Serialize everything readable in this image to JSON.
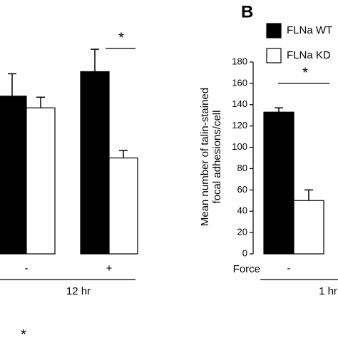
{
  "chart_data": [
    {
      "type": "bar",
      "categories": [
        "-",
        "+"
      ],
      "group_label": "12 hr",
      "series": [
        {
          "color": "#000000",
          "values": [
            148,
            171
          ],
          "errors": [
            21,
            21
          ]
        },
        {
          "color": "#ffffff",
          "values": [
            137,
            90
          ],
          "errors": [
            10,
            7
          ]
        }
      ],
      "ylim": [
        0,
        180
      ],
      "annotations": [
        "*",
        "*"
      ]
    },
    {
      "type": "bar",
      "panel_label": "B",
      "y_label": [
        "Mean number of  talin-stained",
        "focal adhesions/cell"
      ],
      "x_label": "Force",
      "categories": [
        "-"
      ],
      "group_label": "1 hr",
      "series": [
        {
          "name": "FLNa WT",
          "color": "#000000",
          "values": [
            133
          ],
          "errors": [
            4
          ]
        },
        {
          "name": "FLNa KD",
          "color": "#ffffff",
          "values": [
            50
          ],
          "errors": [
            10
          ]
        }
      ],
      "ylim": [
        0,
        180
      ],
      "yticks": [
        0,
        20,
        40,
        60,
        80,
        100,
        120,
        140,
        160,
        180
      ],
      "annotations": [
        "*"
      ]
    }
  ]
}
